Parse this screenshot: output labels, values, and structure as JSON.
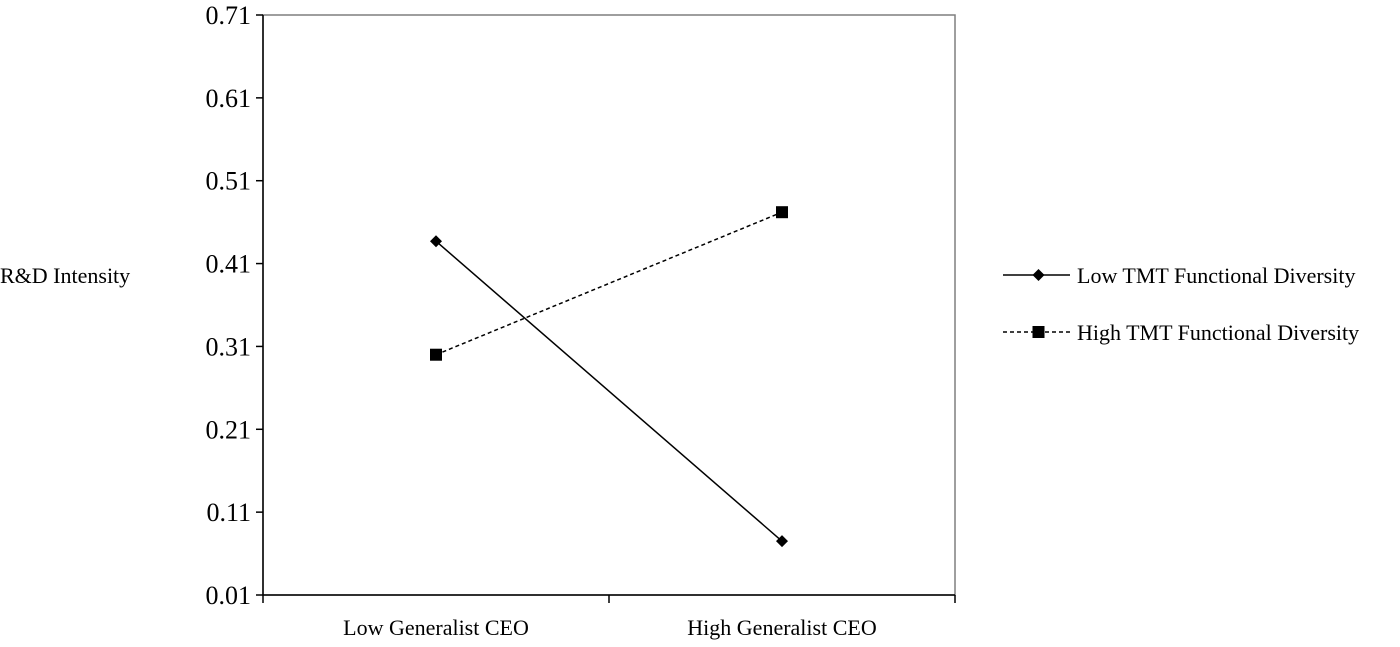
{
  "chart_data": {
    "type": "line",
    "title": "",
    "xlabel": "",
    "ylabel": "R&D Intensity",
    "categories": [
      "Low Generalist CEO",
      "High Generalist CEO"
    ],
    "yticks": [
      "0.01",
      "0.11",
      "0.21",
      "0.31",
      "0.41",
      "0.51",
      "0.61",
      "0.71"
    ],
    "ylim": [
      0.01,
      0.71
    ],
    "grid": false,
    "legend_position": "right",
    "series": [
      {
        "name": "Low TMT Functional Diversity",
        "values": [
          0.437,
          0.075
        ],
        "marker": "diamond",
        "line_style": "solid",
        "color": "#000000"
      },
      {
        "name": "High TMT Functional Diversity",
        "values": [
          0.3,
          0.472
        ],
        "marker": "square",
        "line_style": "dashed",
        "color": "#000000"
      }
    ]
  }
}
